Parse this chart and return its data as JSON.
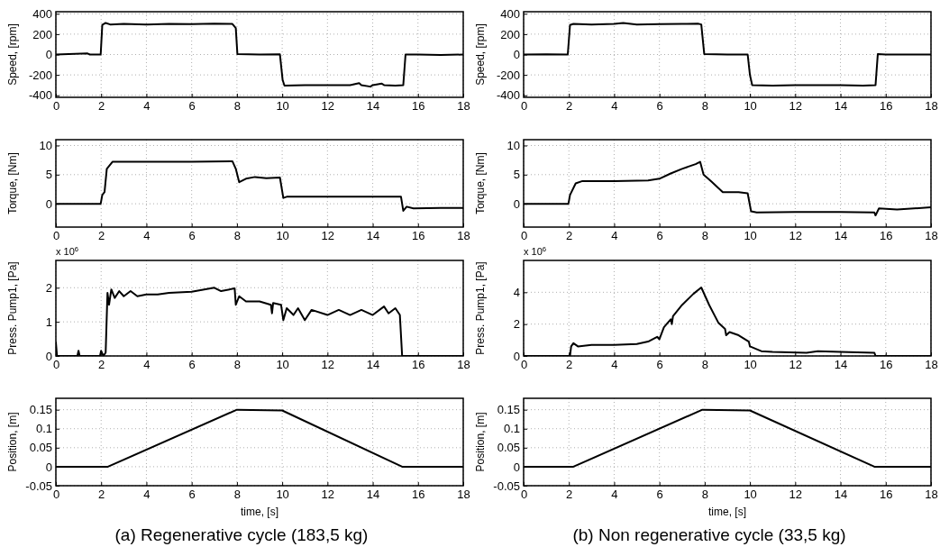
{
  "chart_data": [
    {
      "type": "line",
      "ylabel": "Speed, [rpm]",
      "xlim": [
        0,
        18
      ],
      "xticks": [
        0,
        2,
        4,
        6,
        8,
        10,
        12,
        14,
        16,
        18
      ],
      "ylim": [
        -420,
        420
      ],
      "yticks": [
        -400,
        -200,
        0,
        200,
        400
      ],
      "grid": true,
      "line_style": "solid",
      "x": [
        0,
        1.4,
        1.5,
        1.98,
        2.05,
        2.2,
        2.4,
        3,
        4,
        5,
        6,
        7,
        7.8,
        7.95,
        8.02,
        8.5,
        9,
        9.9,
        10.02,
        10.1,
        11,
        12,
        13,
        13.4,
        13.5,
        13.9,
        14,
        14.4,
        14.5,
        15,
        15.35,
        15.45,
        16,
        17,
        18
      ],
      "series": [
        {
          "color": "#000000",
          "values": [
            0,
            10,
            0,
            0,
            290,
            310,
            295,
            300,
            295,
            300,
            298,
            302,
            300,
            260,
            5,
            3,
            0,
            2,
            -250,
            -305,
            -300,
            -300,
            -300,
            -280,
            -300,
            -315,
            -300,
            -285,
            -300,
            -305,
            -300,
            0,
            0,
            -5,
            0
          ]
        }
      ]
    },
    {
      "type": "line",
      "ylabel": "Speed, [rpm]",
      "xlim": [
        0,
        18
      ],
      "xticks": [
        0,
        2,
        4,
        6,
        8,
        10,
        12,
        14,
        16,
        18
      ],
      "ylim": [
        -420,
        420
      ],
      "yticks": [
        -400,
        -200,
        0,
        200,
        400
      ],
      "grid": true,
      "line_style": "solid",
      "x": [
        0,
        1,
        1.95,
        2.05,
        2.2,
        3,
        4,
        4.4,
        5,
        6,
        7,
        7.7,
        7.85,
        7.98,
        8.5,
        9,
        9.9,
        10,
        10.1,
        11,
        12,
        13,
        14,
        15,
        15.55,
        15.65,
        16,
        17,
        18
      ],
      "series": [
        {
          "color": "#000000",
          "values": [
            0,
            3,
            0,
            290,
            300,
            295,
            300,
            310,
            295,
            298,
            300,
            302,
            295,
            5,
            2,
            0,
            0,
            -200,
            -300,
            -305,
            -300,
            -300,
            -300,
            -305,
            -300,
            5,
            0,
            0,
            0
          ]
        }
      ]
    },
    {
      "type": "line",
      "ylabel": "Torque, [Nm]",
      "xlim": [
        0,
        18
      ],
      "xticks": [
        0,
        2,
        4,
        6,
        8,
        10,
        12,
        14,
        16,
        18
      ],
      "ylim": [
        -4,
        11
      ],
      "yticks": [
        0,
        5,
        10
      ],
      "grid": true,
      "line_style": "solid",
      "x": [
        0,
        1.98,
        2.05,
        2.15,
        2.25,
        2.5,
        4,
        6,
        7.8,
        7.95,
        8.1,
        8.4,
        8.8,
        9.3,
        9.9,
        10.05,
        10.2,
        12,
        14,
        15.25,
        15.35,
        15.5,
        15.8,
        17,
        18
      ],
      "series": [
        {
          "color": "#000000",
          "values": [
            0,
            0,
            1.5,
            2,
            6,
            7.2,
            7.2,
            7.2,
            7.3,
            6,
            3.7,
            4.3,
            4.6,
            4.4,
            4.5,
            1,
            1.2,
            1.2,
            1.2,
            1.2,
            -1.2,
            -0.5,
            -0.8,
            -0.7,
            -0.7
          ]
        }
      ]
    },
    {
      "type": "line",
      "ylabel": "Torque, [Nm]",
      "xlim": [
        0,
        18
      ],
      "xticks": [
        0,
        2,
        4,
        6,
        8,
        10,
        12,
        14,
        16,
        18
      ],
      "ylim": [
        -4,
        11
      ],
      "yticks": [
        0,
        5,
        10
      ],
      "grid": true,
      "line_style": "solid",
      "x": [
        0,
        1.98,
        2.05,
        2.3,
        2.6,
        4,
        5.5,
        6,
        6.5,
        7,
        7.6,
        7.8,
        7.95,
        8.3,
        8.8,
        9.5,
        9.9,
        10.05,
        10.3,
        12,
        14,
        15.5,
        15.55,
        15.7,
        16.5,
        18
      ],
      "series": [
        {
          "color": "#000000",
          "values": [
            0,
            0,
            1.5,
            3.5,
            3.9,
            3.9,
            4,
            4.3,
            5.2,
            6,
            6.8,
            7.2,
            5,
            3.8,
            2,
            2,
            1.8,
            -1.3,
            -1.5,
            -1.4,
            -1.4,
            -1.5,
            -2,
            -0.8,
            -1,
            -0.6
          ]
        }
      ]
    },
    {
      "type": "line",
      "ylabel": "Press. Pump1, [Pa]",
      "annotations": [
        "x 10$^{6}$"
      ],
      "xlim": [
        0,
        18
      ],
      "xticks": [
        0,
        2,
        4,
        6,
        8,
        10,
        12,
        14,
        16,
        18
      ],
      "ylim": [
        0,
        2.8
      ],
      "yticks": [
        0,
        1,
        2
      ],
      "grid": true,
      "line_style": "solid",
      "x": [
        0,
        0.05,
        0.95,
        1,
        1.05,
        1.95,
        2,
        2.1,
        2.2,
        2.28,
        2.35,
        2.45,
        2.6,
        2.8,
        3,
        3.3,
        3.6,
        4,
        4.5,
        5,
        6,
        7,
        7.3,
        7.9,
        7.95,
        8.1,
        8.4,
        9,
        9.5,
        9.55,
        9.6,
        9.95,
        10.05,
        10.2,
        10.5,
        10.7,
        11,
        11.3,
        12,
        12.5,
        13,
        13.5,
        14,
        14.5,
        14.7,
        15,
        15.2,
        15.3,
        18
      ],
      "series": [
        {
          "color": "#000000",
          "values": [
            0.4,
            0,
            0,
            0.15,
            0,
            0,
            0.15,
            0,
            0.1,
            1.85,
            1.5,
            1.95,
            1.7,
            1.9,
            1.75,
            1.9,
            1.75,
            1.8,
            1.8,
            1.85,
            1.88,
            2,
            1.9,
            1.98,
            1.5,
            1.75,
            1.6,
            1.6,
            1.5,
            1.25,
            1.55,
            1.5,
            1.05,
            1.4,
            1.2,
            1.4,
            1.05,
            1.35,
            1.2,
            1.35,
            1.2,
            1.35,
            1.2,
            1.45,
            1.25,
            1.4,
            1.2,
            0,
            0
          ]
        }
      ]
    },
    {
      "type": "line",
      "ylabel": "Press. Pump1, [Pa]",
      "annotations": [
        "x 10$^{6}$"
      ],
      "xlim": [
        0,
        18
      ],
      "xticks": [
        0,
        2,
        4,
        6,
        8,
        10,
        12,
        14,
        16,
        18
      ],
      "ylim": [
        0,
        6
      ],
      "yticks": [
        0,
        2,
        4
      ],
      "grid": true,
      "line_style": "solid",
      "x": [
        0,
        2.05,
        2.1,
        2.2,
        2.4,
        3,
        4,
        5,
        5.5,
        5.9,
        6,
        6.2,
        6.5,
        6.55,
        6.6,
        7,
        7.5,
        7.85,
        8.2,
        8.6,
        8.9,
        8.95,
        9.1,
        9.5,
        9.95,
        10,
        10.5,
        11,
        12.5,
        13,
        14,
        15.5,
        15.55,
        18
      ],
      "series": [
        {
          "color": "#000000",
          "values": [
            0,
            0,
            0.6,
            0.8,
            0.6,
            0.7,
            0.7,
            0.75,
            0.9,
            1.2,
            1.05,
            1.8,
            2.3,
            2,
            2.5,
            3.2,
            3.9,
            4.3,
            3.2,
            2.1,
            1.7,
            1.3,
            1.5,
            1.3,
            0.9,
            0.6,
            0.3,
            0.25,
            0.2,
            0.3,
            0.25,
            0.2,
            0,
            0
          ]
        }
      ]
    },
    {
      "type": "line",
      "ylabel": "Position, [m]",
      "xlabel": "time, [s]",
      "annotations": [
        "(a) Regenerative cycle (183,5 kg)"
      ],
      "xlim": [
        0,
        18
      ],
      "xticks": [
        0,
        2,
        4,
        6,
        8,
        10,
        12,
        14,
        16,
        18
      ],
      "ylim": [
        -0.05,
        0.18
      ],
      "yticks": [
        -0.05,
        0,
        0.05,
        0.1,
        0.15
      ],
      "grid": true,
      "line_style": "solid",
      "x": [
        0,
        2.3,
        8,
        10,
        15.3,
        18
      ],
      "series": [
        {
          "color": "#000000",
          "values": [
            0,
            0,
            0.15,
            0.148,
            0,
            0
          ]
        }
      ]
    },
    {
      "type": "line",
      "ylabel": "Position, [m]",
      "xlabel": "time, [s]",
      "annotations": [
        "(b) Non regenerative cycle (33,5 kg)"
      ],
      "xlim": [
        0,
        18
      ],
      "xticks": [
        0,
        2,
        4,
        6,
        8,
        10,
        12,
        14,
        16,
        18
      ],
      "ylim": [
        -0.05,
        0.18
      ],
      "yticks": [
        -0.05,
        0,
        0.05,
        0.1,
        0.15
      ],
      "grid": true,
      "line_style": "solid",
      "x": [
        0,
        2.2,
        7.9,
        10,
        15.5,
        18
      ],
      "series": [
        {
          "color": "#000000",
          "values": [
            0,
            0,
            0.15,
            0.148,
            0,
            0
          ]
        }
      ]
    }
  ]
}
